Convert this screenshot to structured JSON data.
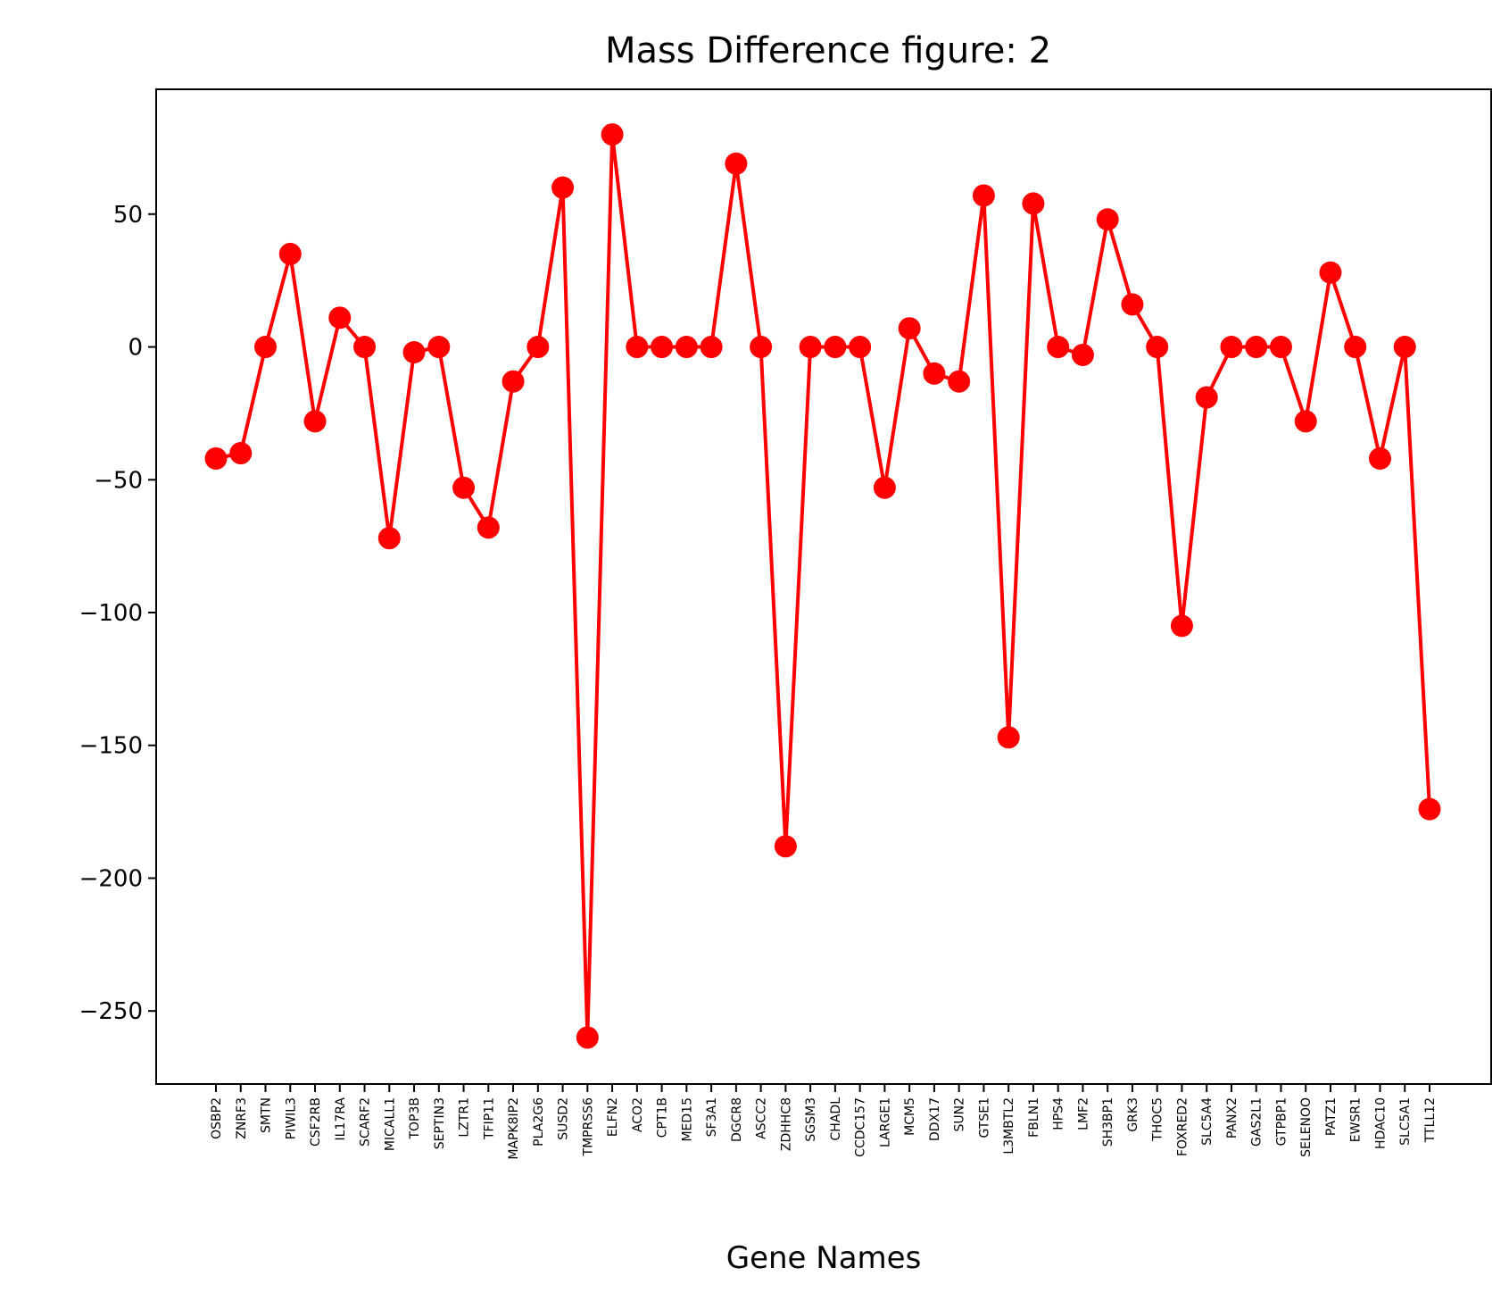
{
  "chart_data": {
    "type": "line",
    "title": "Mass Difference figure: 2",
    "xlabel": "Gene Names",
    "ylabel": "",
    "ylim": [
      -277.5,
      97
    ],
    "yticks": [
      50,
      0,
      -50,
      -100,
      -150,
      -200,
      -250
    ],
    "ytick_labels": [
      "50",
      "0",
      "−50",
      "−100",
      "−150",
      "−200",
      "−250"
    ],
    "grid": false,
    "legend": "none",
    "line_color": "#ff0000",
    "marker": "circle",
    "categories": [
      "OSBP2",
      "ZNRF3",
      "SMTN",
      "PIWIL3",
      "CSF2RB",
      "IL17RA",
      "SCARF2",
      "MICALL1",
      "TOP3B",
      "SEPTIN3",
      "LZTR1",
      "TFIP11",
      "MAPK8IP2",
      "PLA2G6",
      "SUSD2",
      "TMPRSS6",
      "ELFN2",
      "ACO2",
      "CPT1B",
      "MED15",
      "SF3A1",
      "DGCR8",
      "ASCC2",
      "ZDHHC8",
      "SGSM3",
      "CHADL",
      "CCDC157",
      "LARGE1",
      "MCM5",
      "DDX17",
      "SUN2",
      "GTSE1",
      "L3MBTL2",
      "FBLN1",
      "HPS4",
      "LMF2",
      "SH3BP1",
      "GRK3",
      "THOC5",
      "FOXRED2",
      "SLC5A4",
      "PANX2",
      "GAS2L1",
      "GTPBP1",
      "SELENOO",
      "PATZ1",
      "EWSR1",
      "HDAC10",
      "SLC5A1",
      "TTLL12"
    ],
    "values": [
      -42,
      -40,
      0,
      35,
      -28,
      11,
      0,
      -72,
      -2,
      0,
      -53,
      -68,
      -13,
      0,
      60,
      -260,
      80,
      0,
      0,
      0,
      0,
      69,
      0,
      -188,
      0,
      0,
      0,
      -53,
      7,
      -10,
      -13,
      57,
      -147,
      54,
      0,
      -3,
      48,
      16,
      0,
      -105,
      -19,
      0,
      0,
      0,
      -28,
      28,
      0,
      -42,
      0,
      -174
    ]
  }
}
